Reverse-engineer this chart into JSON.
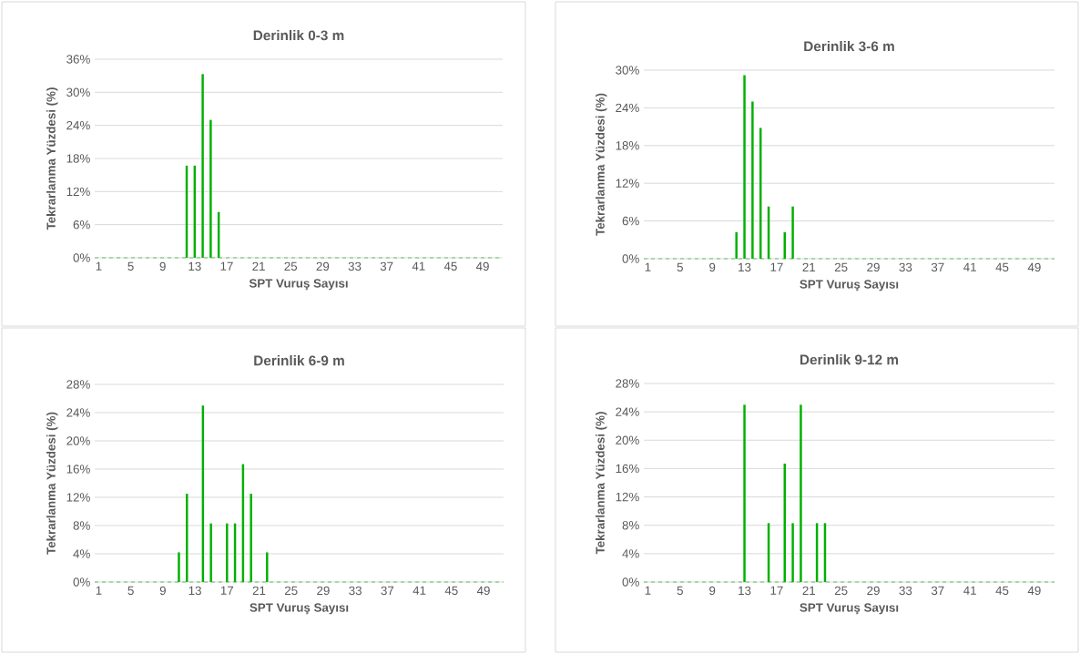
{
  "chart_data": [
    {
      "type": "bar",
      "title": "Derinlik 0-3 m",
      "xlabel": "SPT Vuruş Sayısı",
      "ylabel": "Tekrarlanma Yüzdesi (%)",
      "categories": [
        "1",
        null,
        null,
        null,
        "5",
        null,
        null,
        null,
        "9",
        null,
        null,
        null,
        "13",
        null,
        null,
        null,
        "17",
        null,
        null,
        null,
        "21",
        null,
        null,
        null,
        "25",
        null,
        null,
        null,
        "29",
        null,
        null,
        null,
        "33",
        null,
        null,
        null,
        "37",
        null,
        null,
        null,
        "41",
        null,
        null,
        null,
        "45",
        null,
        null,
        null,
        "49",
        null,
        null
      ],
      "values": [
        0,
        0,
        0,
        0,
        0,
        0,
        0,
        0,
        0,
        0,
        0,
        16.7,
        16.7,
        33.3,
        25,
        8.3,
        0,
        0,
        0,
        0,
        0,
        0,
        0,
        0,
        0,
        0,
        0,
        0,
        0,
        0,
        0,
        0,
        0,
        0,
        0,
        0,
        0,
        0,
        0,
        0,
        0,
        0,
        0,
        0,
        0,
        0,
        0,
        0,
        0,
        0,
        0
      ],
      "color": "#00b000",
      "ylim": [
        0,
        36
      ],
      "yticks": [
        {
          "value": 0,
          "label": "0%"
        },
        {
          "value": 6,
          "label": "6%"
        },
        {
          "value": 12,
          "label": "12%"
        },
        {
          "value": 18,
          "label": "18%"
        },
        {
          "value": 24,
          "label": "24%"
        },
        {
          "value": 30,
          "label": "30%"
        },
        {
          "value": 36,
          "label": "36%"
        }
      ],
      "grid": "y"
    },
    {
      "type": "bar",
      "title": "Derinlik 3-6 m",
      "xlabel": "SPT Vuruş Sayısı",
      "ylabel": "Tekrarlanma Yüzdesi (%)",
      "categories": [
        "1",
        null,
        null,
        null,
        "5",
        null,
        null,
        null,
        "9",
        null,
        null,
        null,
        "13",
        null,
        null,
        null,
        "17",
        null,
        null,
        null,
        "21",
        null,
        null,
        null,
        "25",
        null,
        null,
        null,
        "29",
        null,
        null,
        null,
        "33",
        null,
        null,
        null,
        "37",
        null,
        null,
        null,
        "41",
        null,
        null,
        null,
        "45",
        null,
        null,
        null,
        "49",
        null,
        null
      ],
      "values": [
        0,
        0,
        0,
        0,
        0,
        0,
        0,
        0,
        0,
        0,
        0,
        4.2,
        29.2,
        25,
        20.8,
        8.3,
        0,
        4.2,
        8.3,
        0,
        0,
        0,
        0,
        0,
        0,
        0,
        0,
        0,
        0,
        0,
        0,
        0,
        0,
        0,
        0,
        0,
        0,
        0,
        0,
        0,
        0,
        0,
        0,
        0,
        0,
        0,
        0,
        0,
        0,
        0,
        0
      ],
      "color": "#00b000",
      "ylim": [
        0,
        30
      ],
      "yticks": [
        {
          "value": 0,
          "label": "0%"
        },
        {
          "value": 6,
          "label": "6%"
        },
        {
          "value": 12,
          "label": "12%"
        },
        {
          "value": 18,
          "label": "18%"
        },
        {
          "value": 24,
          "label": "24%"
        },
        {
          "value": 30,
          "label": "30%"
        }
      ],
      "grid": "y"
    },
    {
      "type": "bar",
      "title": "Derinlik 6-9 m",
      "xlabel": "SPT Vuruş Sayısı",
      "ylabel": "Tekrarlanma Yüzdesi (%)",
      "categories": [
        "1",
        null,
        null,
        null,
        "5",
        null,
        null,
        null,
        "9",
        null,
        null,
        null,
        "13",
        null,
        null,
        null,
        "17",
        null,
        null,
        null,
        "21",
        null,
        null,
        null,
        "25",
        null,
        null,
        null,
        "29",
        null,
        null,
        null,
        "33",
        null,
        null,
        null,
        "37",
        null,
        null,
        null,
        "41",
        null,
        null,
        null,
        "45",
        null,
        null,
        null,
        "49",
        null,
        null
      ],
      "values": [
        0,
        0,
        0,
        0,
        0,
        0,
        0,
        0,
        0,
        0,
        4.2,
        12.5,
        0,
        25,
        8.3,
        0,
        8.3,
        8.3,
        16.7,
        12.5,
        0,
        4.2,
        0,
        0,
        0,
        0,
        0,
        0,
        0,
        0,
        0,
        0,
        0,
        0,
        0,
        0,
        0,
        0,
        0,
        0,
        0,
        0,
        0,
        0,
        0,
        0,
        0,
        0,
        0,
        0,
        0
      ],
      "color": "#00b000",
      "ylim": [
        0,
        28
      ],
      "yticks": [
        {
          "value": 0,
          "label": "0%"
        },
        {
          "value": 4,
          "label": "4%"
        },
        {
          "value": 8,
          "label": "8%"
        },
        {
          "value": 12,
          "label": "12%"
        },
        {
          "value": 16,
          "label": "16%"
        },
        {
          "value": 20,
          "label": "20%"
        },
        {
          "value": 24,
          "label": "24%"
        },
        {
          "value": 28,
          "label": "28%"
        }
      ],
      "grid": "y"
    },
    {
      "type": "bar",
      "title": "Derinlik 9-12 m",
      "xlabel": "SPT Vuruş Sayısı",
      "ylabel": "Tekrarlanma Yüzdesi (%)",
      "categories": [
        "1",
        null,
        null,
        null,
        "5",
        null,
        null,
        null,
        "9",
        null,
        null,
        null,
        "13",
        null,
        null,
        null,
        "17",
        null,
        null,
        null,
        "21",
        null,
        null,
        null,
        "25",
        null,
        null,
        null,
        "29",
        null,
        null,
        null,
        "33",
        null,
        null,
        null,
        "37",
        null,
        null,
        null,
        "41",
        null,
        null,
        null,
        "45",
        null,
        null,
        null,
        "49",
        null,
        null
      ],
      "values": [
        0,
        0,
        0,
        0,
        0,
        0,
        0,
        0,
        0,
        0,
        0,
        0,
        25,
        0,
        0,
        8.3,
        0,
        16.7,
        8.3,
        25,
        0,
        8.3,
        8.3,
        0,
        0,
        0,
        0,
        0,
        0,
        0,
        0,
        0,
        0,
        0,
        0,
        0,
        0,
        0,
        0,
        0,
        0,
        0,
        0,
        0,
        0,
        0,
        0,
        0,
        0,
        0,
        0
      ],
      "color": "#00b000",
      "ylim": [
        0,
        28
      ],
      "yticks": [
        {
          "value": 0,
          "label": "0%"
        },
        {
          "value": 4,
          "label": "4%"
        },
        {
          "value": 8,
          "label": "8%"
        },
        {
          "value": 12,
          "label": "12%"
        },
        {
          "value": 16,
          "label": "16%"
        },
        {
          "value": 20,
          "label": "20%"
        },
        {
          "value": 24,
          "label": "24%"
        },
        {
          "value": 28,
          "label": "28%"
        }
      ],
      "grid": "y"
    }
  ]
}
